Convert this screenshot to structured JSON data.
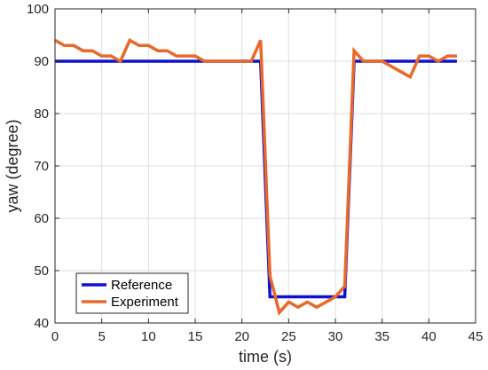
{
  "chart_data": {
    "type": "line",
    "title": "",
    "xlabel": "time (s)",
    "ylabel": "yaw (degree)",
    "xlim": [
      0,
      45
    ],
    "ylim": [
      40,
      100
    ],
    "xticks": [
      0,
      5,
      10,
      15,
      20,
      25,
      30,
      35,
      40,
      45
    ],
    "yticks": [
      40,
      50,
      60,
      70,
      80,
      90,
      100
    ],
    "grid": true,
    "legend": {
      "placement": "bottom-left"
    },
    "series": [
      {
        "name": "Reference",
        "color": "#1010d0",
        "x": [
          0,
          22,
          23,
          31,
          32,
          43
        ],
        "y": [
          90,
          90,
          45,
          45,
          90,
          90
        ]
      },
      {
        "name": "Experiment",
        "color": "#e8692a",
        "x": [
          0,
          1,
          2,
          3,
          4,
          5,
          6,
          7,
          8,
          9,
          10,
          11,
          12,
          13,
          14,
          15,
          16,
          17,
          18,
          19,
          20,
          21,
          22,
          23,
          24,
          25,
          26,
          27,
          28,
          29,
          30,
          31,
          32,
          33,
          34,
          35,
          36,
          37,
          38,
          39,
          40,
          41,
          42,
          43
        ],
        "y": [
          94,
          93,
          93,
          92,
          92,
          91,
          91,
          90,
          94,
          93,
          93,
          92,
          92,
          91,
          91,
          91,
          90,
          90,
          90,
          90,
          90,
          90,
          94,
          49,
          42,
          44,
          43,
          44,
          43,
          44,
          45,
          47,
          92,
          90,
          90,
          90,
          89,
          88,
          87,
          91,
          91,
          90,
          91,
          91
        ]
      }
    ]
  }
}
